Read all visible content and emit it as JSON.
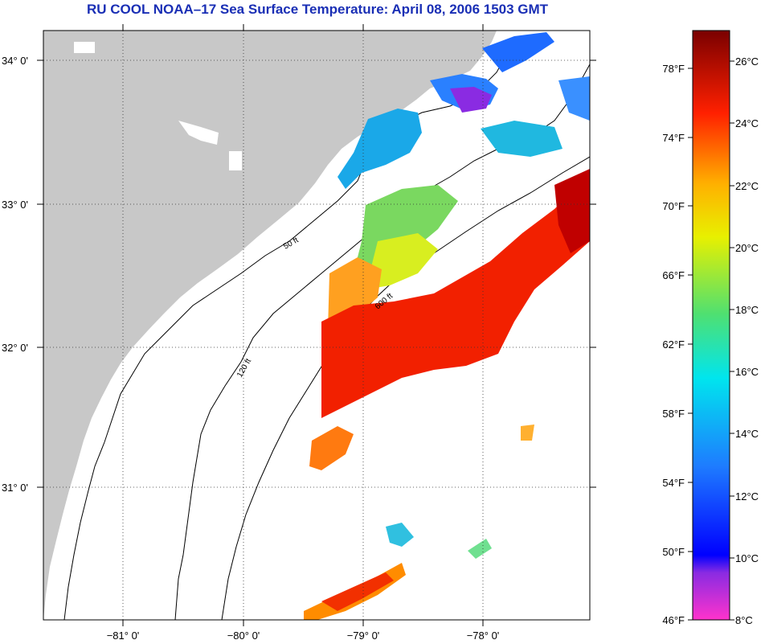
{
  "title": "RU COOL  NOAA–17  Sea Surface Temperature:  April 08, 2006 1503 GMT",
  "map": {
    "lat_labels": [
      "34° 0'",
      "33° 0'",
      "32° 0'",
      "31° 0'"
    ],
    "lon_labels": [
      "−81° 0'",
      "−80° 0'",
      "−79° 0'",
      "−78° 0'"
    ],
    "contour_labels": [
      "50 ft",
      "120 ft",
      "600 ft"
    ],
    "colors": {
      "land": "#c8c8c8",
      "ocean": "#ffffff",
      "title": "#1a2fb5"
    }
  },
  "colorbar": {
    "fahrenheit_labels": [
      "78°F",
      "74°F",
      "70°F",
      "66°F",
      "62°F",
      "58°F",
      "54°F",
      "50°F",
      "46°F"
    ],
    "celsius_labels": [
      "26°C",
      "24°C",
      "22°C",
      "20°C",
      "18°C",
      "16°C",
      "14°C",
      "12°C",
      "10°C",
      "8°C"
    ]
  }
}
